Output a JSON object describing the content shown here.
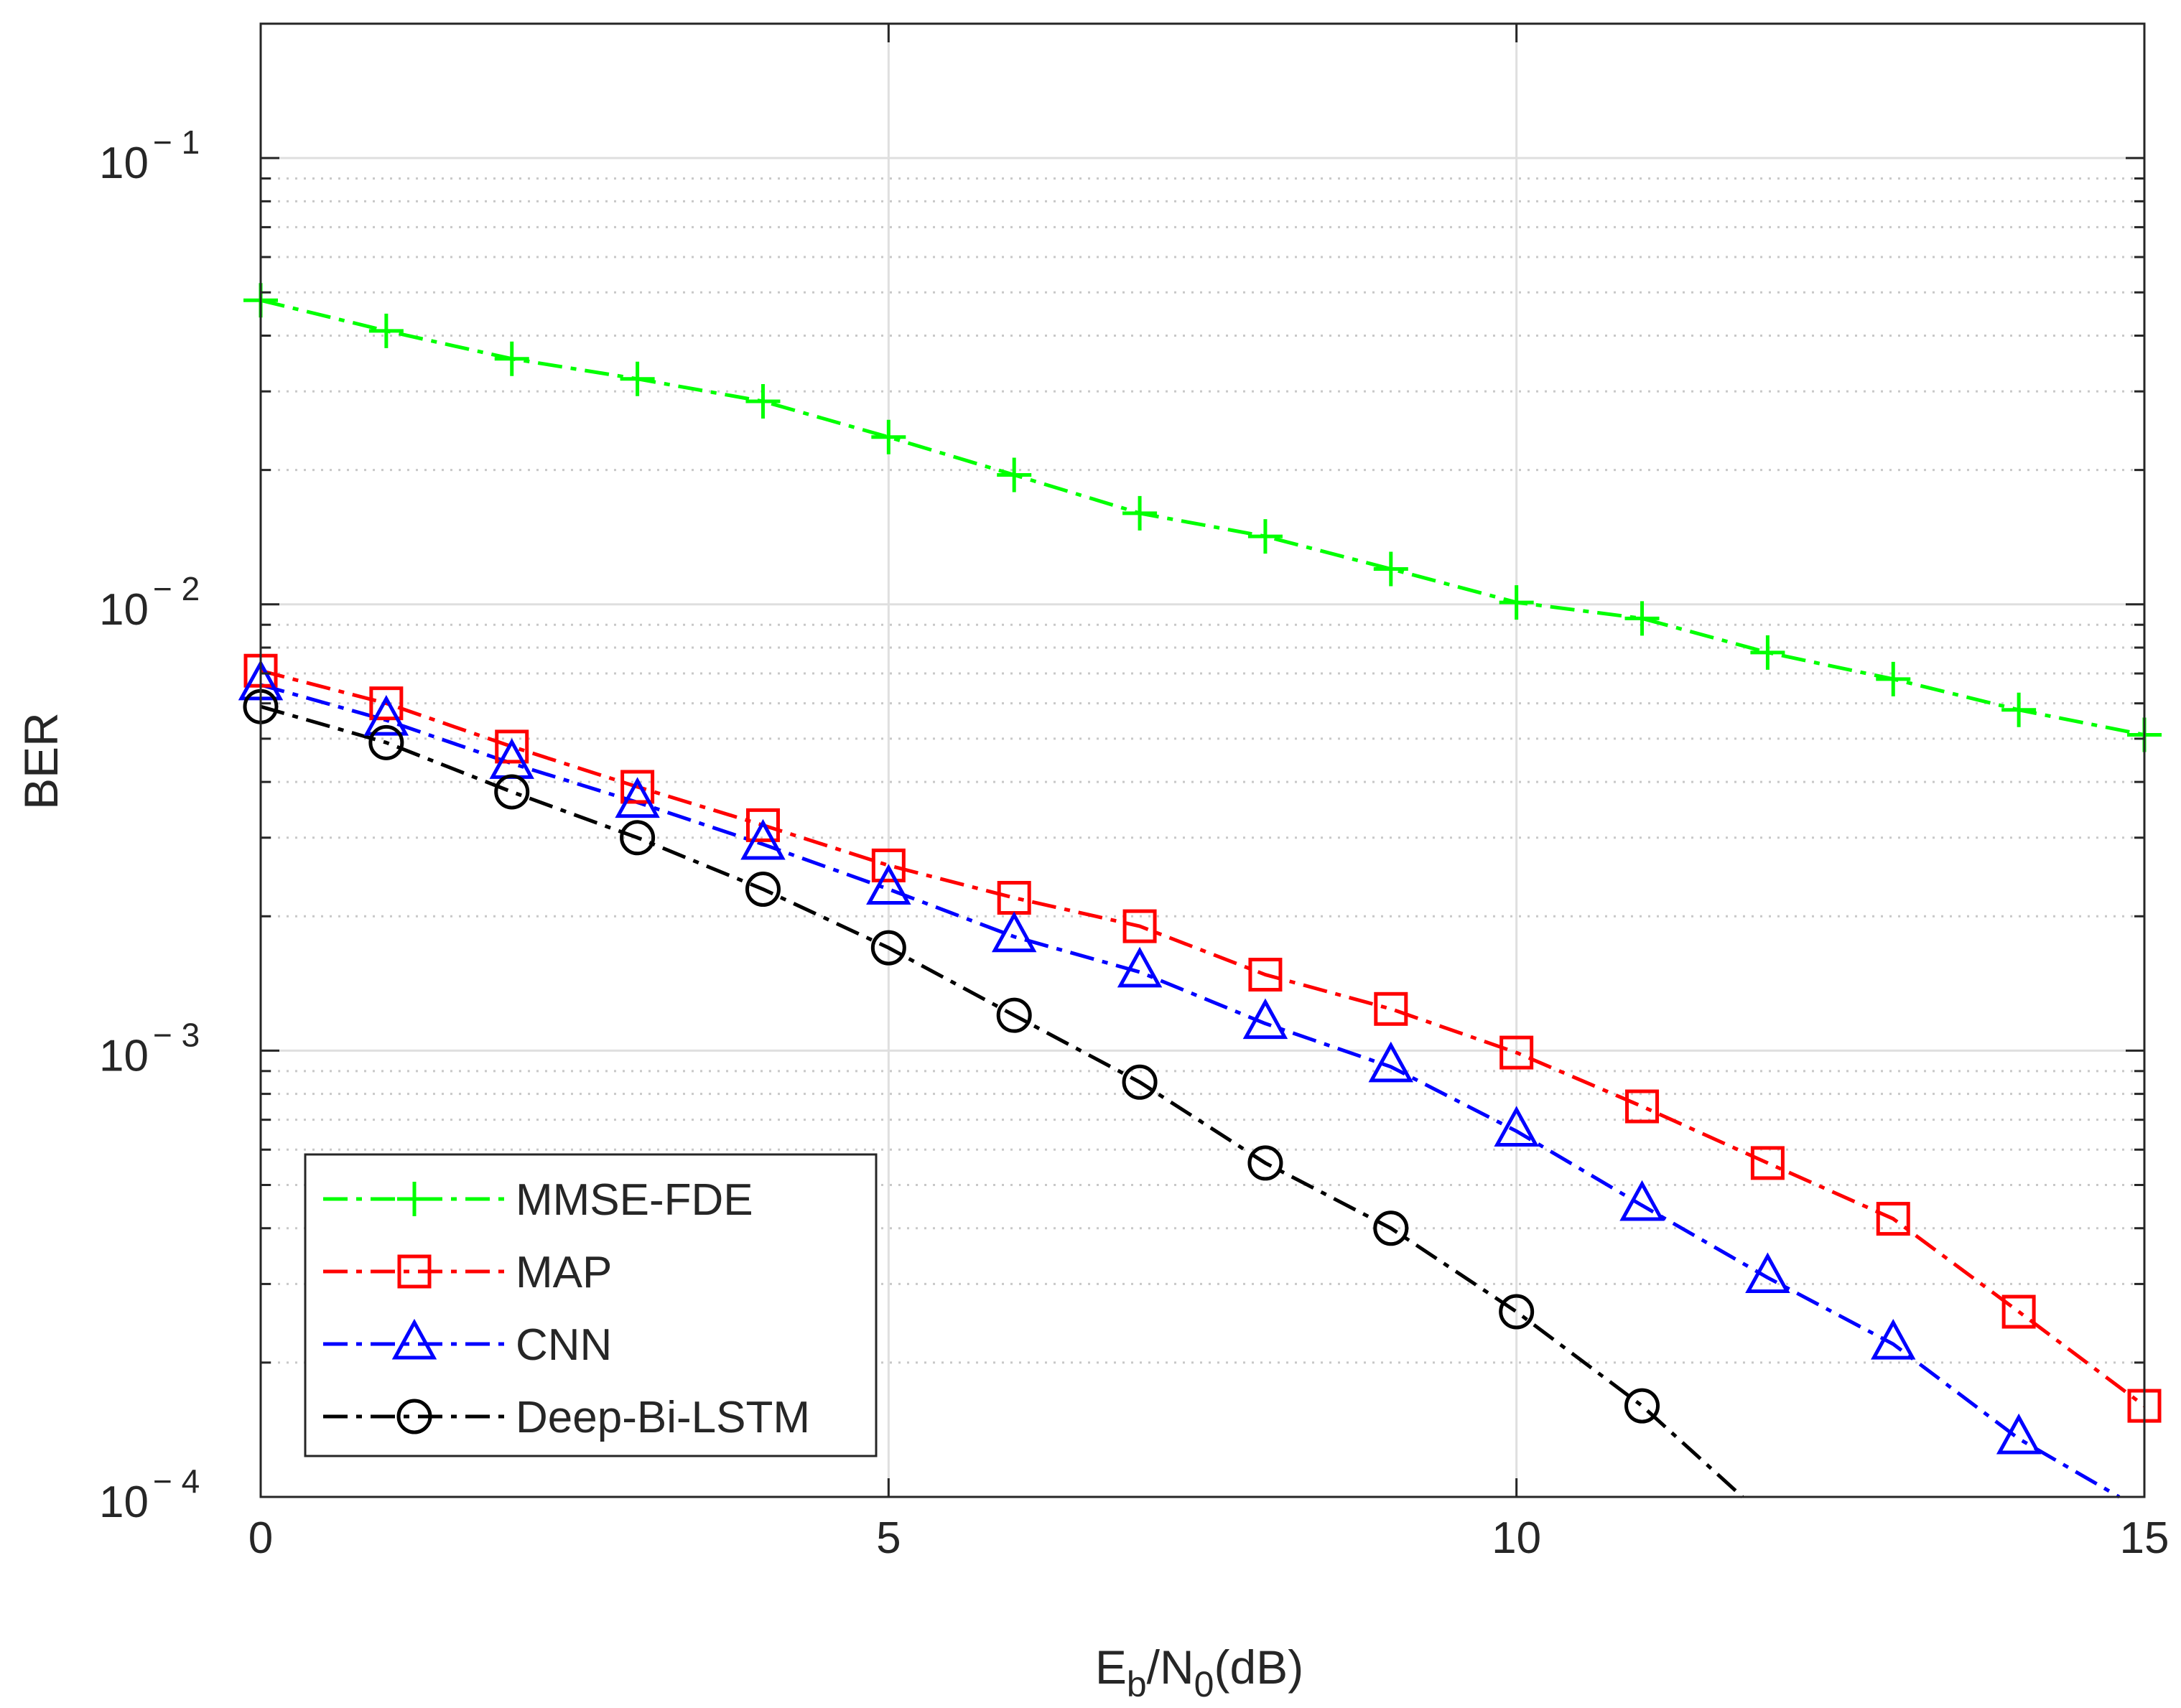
{
  "chart_data": {
    "type": "line",
    "title": "",
    "xlabel": "E",
    "xlabel_sub_b": "b",
    "xlabel_mid": "/N",
    "xlabel_sub_0": "0",
    "xlabel_tail": "(dB)",
    "ylabel": "BER",
    "yscale": "log",
    "xlim": [
      0,
      15
    ],
    "ylim": [
      0.0001,
      0.2
    ],
    "grid": true,
    "legend_position": "bottom-left",
    "x_ticks": [
      {
        "value": 0,
        "label": "0"
      },
      {
        "value": 5,
        "label": "5"
      },
      {
        "value": 10,
        "label": "10"
      },
      {
        "value": 15,
        "label": "15"
      }
    ],
    "y_ticks": [
      {
        "value": 0.1,
        "base": "10",
        "exp": "− 1"
      },
      {
        "value": 0.01,
        "base": "10",
        "exp": "− 2"
      },
      {
        "value": 0.001,
        "base": "10",
        "exp": "− 3"
      },
      {
        "value": 0.0001,
        "base": "10",
        "exp": "− 4"
      }
    ],
    "series": [
      {
        "name": "MMSE-FDE",
        "color": "#00ff00",
        "marker": "plus",
        "x": [
          0,
          1,
          2,
          3,
          4,
          5,
          6,
          7,
          8,
          9,
          10,
          11,
          12,
          13,
          14,
          15
        ],
        "values": [
          0.048,
          0.041,
          0.0355,
          0.032,
          0.0285,
          0.0237,
          0.0195,
          0.016,
          0.0142,
          0.012,
          0.0101,
          0.0093,
          0.0078,
          0.0068,
          0.0058,
          0.0051
        ]
      },
      {
        "name": "MAP",
        "color": "#ff0000",
        "marker": "square",
        "x": [
          0,
          1,
          2,
          3,
          4,
          5,
          6,
          7,
          8,
          9,
          10,
          11,
          12,
          13,
          14,
          15
        ],
        "values": [
          0.0071,
          0.006,
          0.0048,
          0.0039,
          0.0032,
          0.0026,
          0.0022,
          0.0019,
          0.00148,
          0.00124,
          0.00099,
          0.00075,
          0.00056,
          0.00042,
          0.00026,
          0.00016
        ]
      },
      {
        "name": "CNN",
        "color": "#0000ff",
        "marker": "triangle",
        "x": [
          0,
          1,
          2,
          3,
          4,
          5,
          6,
          7,
          8,
          9,
          10,
          11,
          12,
          13,
          14,
          14.8
        ],
        "values": [
          0.0066,
          0.0055,
          0.0044,
          0.0036,
          0.0029,
          0.0023,
          0.0018,
          0.0015,
          0.00115,
          0.00092,
          0.00066,
          0.00045,
          0.00031,
          0.00022,
          0.000135,
          0.0001
        ]
      },
      {
        "name": "Deep-Bi-LSTM",
        "color": "#000000",
        "marker": "circle",
        "x": [
          0,
          1,
          2,
          3,
          4,
          5,
          6,
          7,
          8,
          9,
          10,
          11,
          11.8
        ],
        "values": [
          0.0059,
          0.0049,
          0.0038,
          0.003,
          0.0023,
          0.0017,
          0.0012,
          0.00085,
          0.00056,
          0.0004,
          0.00026,
          0.00016,
          0.0001
        ]
      }
    ]
  }
}
